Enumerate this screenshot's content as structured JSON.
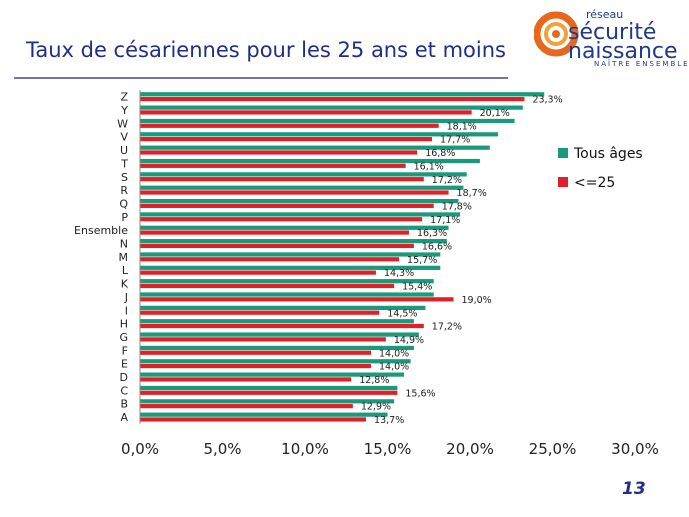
{
  "slide": {
    "title": "Taux de césariennes pour les 25 ans et moins",
    "page_number": "13"
  },
  "logo": {
    "line1": "réseau",
    "line2": "sécurité",
    "line3": "naissance",
    "tagline": "NAÎTRE ENSEMBLE",
    "colors": {
      "orange": "#e8671c",
      "blue": "#1f3a8a"
    }
  },
  "chart_data": {
    "type": "bar",
    "orientation": "horizontal",
    "categories": [
      "Z",
      "Y",
      "W",
      "V",
      "U",
      "T",
      "S",
      "R",
      "Q",
      "P",
      "Ensemble",
      "N",
      "M",
      "L",
      "K",
      "J",
      "I",
      "H",
      "G",
      "F",
      "E",
      "D",
      "C",
      "B",
      "A"
    ],
    "series": [
      {
        "name": "Tous âges",
        "color": "#1a9a7a",
        "values": [
          24.5,
          23.2,
          22.7,
          21.7,
          21.2,
          20.6,
          19.8,
          19.6,
          19.3,
          19.4,
          18.7,
          18.6,
          18.2,
          18.2,
          17.8,
          17.8,
          17.3,
          16.6,
          16.9,
          16.6,
          16.4,
          16.0,
          15.6,
          15.4,
          15.0
        ]
      },
      {
        "name": "<=25",
        "color": "#e01f26",
        "values": [
          23.3,
          20.1,
          18.1,
          17.7,
          16.8,
          16.1,
          17.2,
          18.7,
          17.8,
          17.1,
          16.3,
          16.6,
          15.7,
          14.3,
          15.4,
          19.0,
          14.5,
          17.2,
          14.9,
          14.0,
          14.0,
          12.8,
          15.6,
          12.9,
          13.7
        ]
      }
    ],
    "data_labels": [
      "23,3%",
      "20,1%",
      "18,1%",
      "17,7%",
      "16,8%",
      "16,1%",
      "17,2%",
      "18,7%",
      "17,8%",
      "17,1%",
      "16,3%",
      "16,6%",
      "15,7%",
      "14,3%",
      "15,4%",
      "19,0%",
      "14,5%",
      "17,2%",
      "14,9%",
      "14,0%",
      "14,0%",
      "12,8%",
      "15,6%",
      "12,9%",
      "13,7%"
    ],
    "x_ticks": [
      "0,0%",
      "5,0%",
      "10,0%",
      "15,0%",
      "20,0%",
      "25,0%",
      "30,0%"
    ],
    "xlim": [
      0,
      30
    ],
    "xlabel": "",
    "ylabel": "",
    "grid": false,
    "legend_position": "right"
  }
}
